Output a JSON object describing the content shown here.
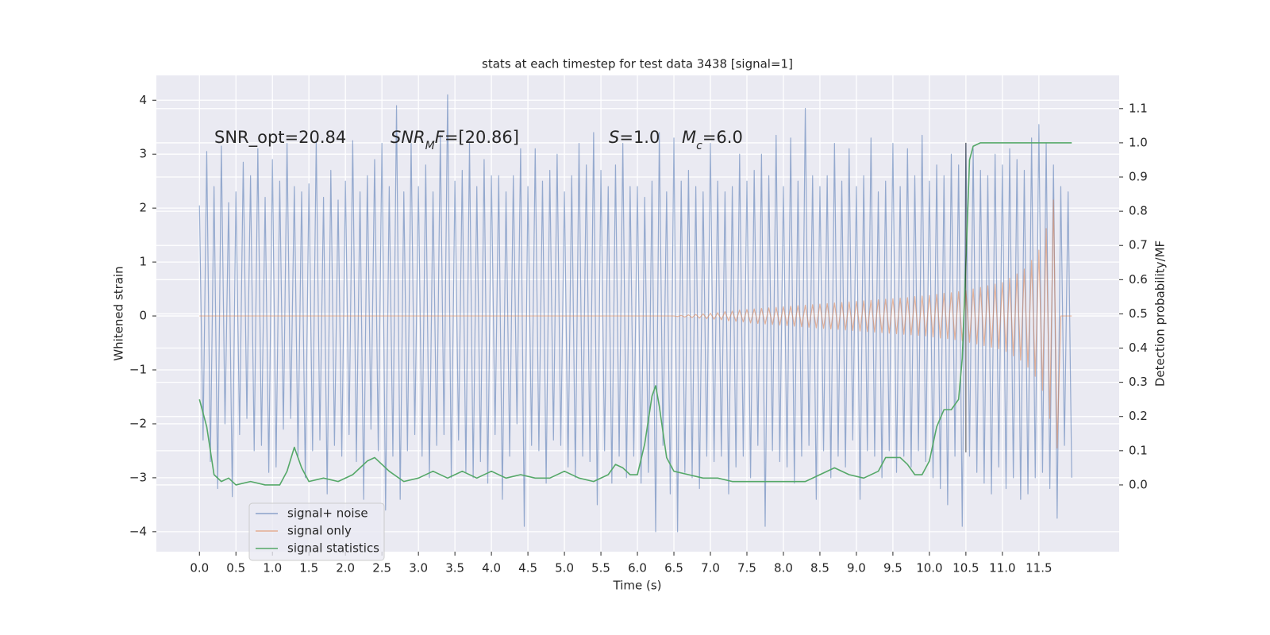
{
  "chart_data": {
    "type": "line",
    "title": "stats at each timestep for test data 3438 [signal=1]",
    "xlabel": "Time (s)",
    "ylabel": "Whitened strain",
    "y2label": "Detection probability/MF",
    "xlim": [
      -0.59,
      12.6
    ],
    "ylim": [
      -4.37,
      4.46
    ],
    "y2lim": [
      -0.195,
      1.197
    ],
    "xticks": [
      {
        "value": 0,
        "label": "0.0"
      },
      0.5,
      {
        "value": 1,
        "label": "1.0"
      },
      1.5,
      {
        "value": 2,
        "label": "2.0"
      },
      2.5,
      {
        "value": 3,
        "label": "3.0"
      },
      3.5,
      {
        "value": 4,
        "label": "4.0"
      },
      4.5,
      {
        "value": 5,
        "label": "5.0"
      },
      5.5,
      {
        "value": 6,
        "label": "6.0"
      },
      6.5,
      {
        "value": 7,
        "label": "7.0"
      },
      7.5,
      {
        "value": 8,
        "label": "8.0"
      },
      8.5,
      {
        "value": 9,
        "label": "9.0"
      },
      9.5,
      {
        "value": 10,
        "label": "10.0"
      },
      10.5,
      {
        "value": 11,
        "label": "11.0"
      },
      11.5
    ],
    "yticks": [
      {
        "value": -4,
        "label": "−4"
      },
      {
        "value": -3,
        "label": "−3"
      },
      {
        "value": -2,
        "label": "−2"
      },
      {
        "value": -1,
        "label": "−1"
      },
      0,
      1,
      2,
      3,
      4
    ],
    "y2ticks": [
      {
        "value": 0,
        "label": "0.0"
      },
      0.1,
      0.2,
      0.3,
      0.4,
      0.5,
      0.6,
      0.7,
      0.8,
      0.9,
      {
        "value": 1,
        "label": "1.0"
      },
      1.1
    ],
    "grid": true,
    "legend": "lower left",
    "annotations": [
      [
        {
          "t": "SNR_opt=20.84"
        }
      ],
      [
        {
          "t": "SNR",
          "i": true
        },
        {
          "t": "M",
          "i": true,
          "sub": true
        },
        {
          "t": "F",
          "i": true
        },
        {
          "t": "=[20.86]"
        }
      ],
      [
        {
          "t": "S",
          "i": true
        },
        {
          "t": "=1.0"
        }
      ],
      [
        {
          "t": "M",
          "i": true
        },
        {
          "t": "c",
          "i": true,
          "sub": true
        },
        {
          "t": "=6.0"
        }
      ]
    ],
    "vlines": [
      10.5
    ],
    "x": [
      0,
      0.05,
      0.1,
      0.15,
      0.2,
      0.25,
      0.3,
      0.35,
      0.4,
      0.45,
      0.5,
      0.55,
      0.6,
      0.65,
      0.7,
      0.75,
      0.8,
      0.85,
      0.9,
      0.95,
      1,
      1.05,
      1.1,
      1.15,
      1.2,
      1.25,
      1.3,
      1.35,
      1.4,
      1.45,
      1.5,
      1.55,
      1.6,
      1.65,
      1.7,
      1.75,
      1.8,
      1.85,
      1.9,
      1.95,
      2,
      2.05,
      2.1,
      2.15,
      2.2,
      2.25,
      2.3,
      2.35,
      2.4,
      2.45,
      2.5,
      2.55,
      2.6,
      2.65,
      2.7,
      2.75,
      2.8,
      2.85,
      2.9,
      2.95,
      3,
      3.05,
      3.1,
      3.15,
      3.2,
      3.25,
      3.3,
      3.35,
      3.4,
      3.45,
      3.5,
      3.55,
      3.6,
      3.65,
      3.7,
      3.75,
      3.8,
      3.85,
      3.9,
      3.95,
      4,
      4.05,
      4.1,
      4.15,
      4.2,
      4.25,
      4.3,
      4.35,
      4.4,
      4.45,
      4.5,
      4.55,
      4.6,
      4.65,
      4.7,
      4.75,
      4.8,
      4.85,
      4.9,
      4.95,
      5,
      5.05,
      5.1,
      5.15,
      5.2,
      5.25,
      5.3,
      5.35,
      5.4,
      5.45,
      5.5,
      5.55,
      5.6,
      5.65,
      5.7,
      5.75,
      5.8,
      5.85,
      5.9,
      5.95,
      6,
      6.05,
      6.1,
      6.15,
      6.2,
      6.25,
      6.3,
      6.35,
      6.4,
      6.45,
      6.5,
      6.55,
      6.6,
      6.65,
      6.7,
      6.75,
      6.8,
      6.85,
      6.9,
      6.95,
      7,
      7.05,
      7.1,
      7.15,
      7.2,
      7.25,
      7.3,
      7.35,
      7.4,
      7.45,
      7.5,
      7.55,
      7.6,
      7.65,
      7.7,
      7.75,
      7.8,
      7.85,
      7.9,
      7.95,
      8,
      8.05,
      8.1,
      8.15,
      8.2,
      8.25,
      8.3,
      8.35,
      8.4,
      8.45,
      8.5,
      8.55,
      8.6,
      8.65,
      8.7,
      8.75,
      8.8,
      8.85,
      8.9,
      8.95,
      9,
      9.05,
      9.1,
      9.15,
      9.2,
      9.25,
      9.3,
      9.35,
      9.4,
      9.45,
      9.5,
      9.55,
      9.6,
      9.65,
      9.7,
      9.75,
      9.8,
      9.85,
      9.9,
      9.95,
      10,
      10.05,
      10.1,
      10.15,
      10.2,
      10.25,
      10.3,
      10.35,
      10.4,
      10.45,
      10.5,
      10.55,
      10.6,
      10.65,
      10.7,
      10.75,
      10.8,
      10.85,
      10.9,
      10.95,
      11,
      11.05,
      11.1,
      11.15,
      11.2,
      11.25,
      11.3,
      11.35,
      11.4,
      11.45,
      11.5,
      11.55,
      11.6,
      11.65,
      11.7,
      11.75,
      11.8,
      11.85,
      11.9,
      11.95
    ],
    "series": [
      {
        "name": "signal+ noise",
        "color": "#4c72b0",
        "values": [
          2.05,
          -2.3,
          3.05,
          -2.7,
          2.4,
          -3.2,
          3.15,
          -2.0,
          2.1,
          -3.35,
          2.3,
          -2.2,
          2.85,
          -1.9,
          2.6,
          -2.5,
          3.1,
          -2.4,
          2.2,
          -2.9,
          2.9,
          -2.8,
          2.5,
          -2.1,
          3.2,
          -1.9,
          2.4,
          -2.6,
          2.3,
          -3.0,
          2.45,
          -2.5,
          3.25,
          -2.3,
          2.2,
          -3.3,
          2.7,
          -2.4,
          2.15,
          -2.6,
          2.5,
          -2.2,
          3.25,
          -2.7,
          2.3,
          -3.4,
          2.6,
          -2.1,
          2.9,
          -2.5,
          3.2,
          -3.6,
          2.4,
          -2.6,
          3.9,
          -3.4,
          2.3,
          -2.5,
          3.2,
          -2.2,
          2.4,
          -2.6,
          2.8,
          -3.0,
          2.3,
          -2.4,
          3.35,
          -2.2,
          4.1,
          -3.0,
          2.5,
          -2.3,
          2.7,
          -2.9,
          3.2,
          -3.0,
          2.4,
          -2.7,
          2.9,
          -3.1,
          2.6,
          -2.2,
          2.6,
          -3.4,
          2.3,
          -2.6,
          2.6,
          -2.0,
          3.1,
          -3.9,
          2.4,
          -2.4,
          3.1,
          -2.5,
          2.5,
          -3.1,
          2.7,
          -2.3,
          3.0,
          -2.4,
          2.3,
          -2.8,
          2.6,
          -3.0,
          3.2,
          -2.6,
          2.8,
          -2.7,
          3.4,
          -3.5,
          2.7,
          -2.5,
          2.4,
          -3.1,
          2.8,
          -2.6,
          3.2,
          -3.0,
          2.4,
          -2.6,
          2.4,
          -3.1,
          2.2,
          -2.9,
          2.5,
          -4.0,
          3.4,
          -2.4,
          2.3,
          -3.3,
          3.3,
          -4.0,
          2.5,
          -2.9,
          2.7,
          -3.0,
          2.4,
          -3.2,
          2.3,
          -2.6,
          3.2,
          -2.7,
          2.5,
          -2.6,
          2.3,
          -3.3,
          2.4,
          -2.8,
          3.0,
          -2.6,
          2.5,
          -3.0,
          2.7,
          -2.4,
          3.0,
          -3.9,
          2.6,
          -2.5,
          3.35,
          -2.7,
          2.4,
          -2.8,
          3.3,
          -3.1,
          2.5,
          -2.6,
          3.85,
          -2.4,
          2.6,
          -3.4,
          2.4,
          -2.5,
          2.6,
          -3.0,
          3.2,
          -2.6,
          2.5,
          -2.8,
          3.1,
          -2.3,
          2.4,
          -3.4,
          2.6,
          -2.5,
          3.3,
          -2.6,
          2.3,
          -3.0,
          2.5,
          -2.5,
          3.2,
          -2.9,
          2.4,
          -2.6,
          3.1,
          -2.8,
          2.6,
          -2.5,
          3.35,
          -2.7,
          2.5,
          -3.0,
          2.8,
          -3.2,
          2.6,
          -3.5,
          3.0,
          -2.6,
          2.8,
          -3.9,
          3.2,
          -2.6,
          3.1,
          -2.9,
          2.7,
          -3.1,
          2.6,
          -3.3,
          3.0,
          -2.8,
          2.8,
          -3.2,
          3.1,
          -3.0,
          2.9,
          -3.4,
          2.7,
          -3.3,
          3.3,
          -3.0,
          3.55,
          -2.9,
          3.2,
          -3.2,
          2.8,
          -3.75,
          2.4,
          -2.4,
          2.3,
          -3.0
        ]
      },
      {
        "name": "signal only",
        "color": "#dd8452",
        "values": [
          0,
          0,
          0,
          0,
          0,
          0,
          0,
          0,
          0,
          0,
          0,
          0,
          0,
          0,
          0,
          0,
          0,
          0,
          0,
          0,
          0,
          0,
          0,
          0,
          0,
          0,
          0,
          0,
          0,
          0,
          0,
          0,
          0,
          0,
          0,
          0,
          0,
          0,
          0,
          0,
          0,
          0,
          0,
          0,
          0,
          0,
          0,
          0,
          0,
          0,
          0,
          0,
          0,
          0,
          0,
          0,
          0,
          0,
          0,
          0,
          0,
          0,
          0,
          0,
          0,
          0,
          0,
          0,
          0,
          0,
          0,
          0,
          0,
          0,
          0,
          0,
          0,
          0,
          0,
          0,
          0,
          0,
          0,
          0,
          0,
          0,
          0,
          0,
          0,
          0,
          0,
          0,
          0,
          0,
          0,
          0,
          0,
          0,
          0,
          0,
          0,
          0,
          0,
          0,
          0,
          0,
          0,
          0,
          0,
          0,
          0,
          0,
          0,
          0,
          0,
          0,
          0,
          0,
          0,
          0,
          0,
          0,
          0,
          0,
          0,
          0,
          0,
          0,
          0,
          0,
          0,
          -0.01,
          0.01,
          -0.02,
          0.02,
          -0.03,
          0.03,
          -0.04,
          0.04,
          -0.05,
          0.05,
          -0.06,
          0.06,
          -0.07,
          0.08,
          -0.09,
          0.09,
          -0.1,
          0.11,
          -0.11,
          0.12,
          -0.13,
          0.13,
          -0.14,
          0.14,
          -0.15,
          0.15,
          -0.16,
          0.16,
          -0.17,
          0.17,
          -0.18,
          0.18,
          -0.19,
          0.19,
          -0.2,
          0.2,
          -0.21,
          0.21,
          -0.22,
          0.22,
          -0.23,
          0.23,
          -0.24,
          0.24,
          -0.25,
          0.25,
          -0.26,
          0.26,
          -0.27,
          0.27,
          -0.28,
          0.28,
          -0.29,
          0.29,
          -0.3,
          0.3,
          -0.31,
          0.31,
          -0.32,
          0.32,
          -0.33,
          0.33,
          -0.34,
          0.34,
          -0.35,
          0.36,
          -0.36,
          0.37,
          -0.37,
          0.38,
          -0.39,
          0.4,
          -0.41,
          0.42,
          -0.42,
          0.43,
          -0.44,
          0.45,
          -0.46,
          0.47,
          -0.49,
          0.5,
          -0.52,
          0.53,
          -0.55,
          0.56,
          -0.58,
          0.59,
          -0.61,
          0.62,
          -0.66,
          0.7,
          -0.74,
          0.78,
          -0.82,
          0.87,
          -0.95,
          1.03,
          -1.12,
          1.22,
          -1.38,
          1.62,
          -1.9,
          2.15,
          -2.45,
          0,
          0,
          0,
          0
        ]
      },
      {
        "name": "signal statistics",
        "color": "#55a868",
        "axis": "y2",
        "x": [
          0,
          0.1,
          0.2,
          0.3,
          0.4,
          0.5,
          0.7,
          0.9,
          1.1,
          1.2,
          1.3,
          1.4,
          1.5,
          1.7,
          1.9,
          2.1,
          2.3,
          2.4,
          2.6,
          2.8,
          3.0,
          3.2,
          3.4,
          3.5,
          3.6,
          3.8,
          4.0,
          4.2,
          4.4,
          4.6,
          4.8,
          5.0,
          5.2,
          5.4,
          5.6,
          5.7,
          5.8,
          5.9,
          6.0,
          6.1,
          6.2,
          6.25,
          6.3,
          6.4,
          6.5,
          6.7,
          6.9,
          7.1,
          7.3,
          7.5,
          7.7,
          7.9,
          8.1,
          8.3,
          8.5,
          8.7,
          8.9,
          9.1,
          9.3,
          9.4,
          9.6,
          9.7,
          9.8,
          9.9,
          10.0,
          10.1,
          10.2,
          10.3,
          10.4,
          10.45,
          10.5,
          10.55,
          10.6,
          10.7,
          10.9,
          11.95
        ],
        "values": [
          0.25,
          0.17,
          0.03,
          0.01,
          0.02,
          0.0,
          0.01,
          0.0,
          0.0,
          0.04,
          0.11,
          0.05,
          0.01,
          0.02,
          0.01,
          0.03,
          0.07,
          0.08,
          0.04,
          0.01,
          0.02,
          0.04,
          0.02,
          0.03,
          0.04,
          0.02,
          0.04,
          0.02,
          0.03,
          0.02,
          0.02,
          0.04,
          0.02,
          0.01,
          0.03,
          0.06,
          0.05,
          0.03,
          0.03,
          0.12,
          0.26,
          0.29,
          0.23,
          0.08,
          0.04,
          0.03,
          0.02,
          0.02,
          0.01,
          0.01,
          0.01,
          0.01,
          0.01,
          0.01,
          0.03,
          0.05,
          0.03,
          0.02,
          0.04,
          0.08,
          0.08,
          0.06,
          0.03,
          0.03,
          0.07,
          0.17,
          0.22,
          0.22,
          0.25,
          0.37,
          0.65,
          0.95,
          0.99,
          1.0,
          1.0,
          1.0
        ]
      }
    ]
  }
}
